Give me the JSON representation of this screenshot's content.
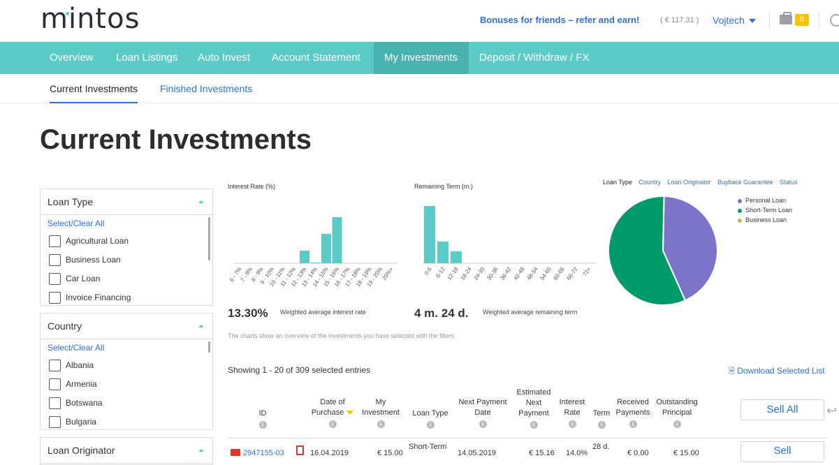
{
  "header": {
    "logo": "mintos",
    "bonus_link": "Bonuses for friends – refer and earn!",
    "balance": "( € 117.31 )",
    "user": "Vojtech",
    "briefcase_count": "0"
  },
  "nav": {
    "items": [
      {
        "label": "Overview"
      },
      {
        "label": "Loan Listings"
      },
      {
        "label": "Auto Invest"
      },
      {
        "label": "Account Statement"
      },
      {
        "label": "My Investments",
        "active": true
      },
      {
        "label": "Deposit / Withdraw / FX"
      }
    ]
  },
  "subnav": {
    "current": "Current Investments",
    "finished": "Finished Investments"
  },
  "page_title": "Current Investments",
  "filters": {
    "loan_type": {
      "title": "Loan Type",
      "select_clear": "Select/Clear All",
      "options": [
        "Agricultural Loan",
        "Business Loan",
        "Car Loan",
        "Invoice Financing"
      ]
    },
    "country": {
      "title": "Country",
      "select_clear": "Select/Clear All",
      "options": [
        "Albania",
        "Armenia",
        "Botswana",
        "Bulgaria"
      ]
    },
    "loan_originator": {
      "title": "Loan Originator"
    }
  },
  "charts": {
    "interest": {
      "title": "Interest Rate (%)",
      "stat_value": "13.30%",
      "stat_label": "Weighted average interest rate"
    },
    "term": {
      "title": "Remaining Term (m.)",
      "stat_value": "4 m. 24 d.",
      "stat_label": "Weighted average remaining term"
    },
    "note": "The charts show an overview of the investments you have selected with the filters",
    "pie_tabs": [
      "Loan Type",
      "Country",
      "Loan Originator",
      "Buyback Guarantee",
      "Status"
    ],
    "legend": [
      {
        "label": "Personal Loan",
        "color": "#7b74c9"
      },
      {
        "label": "Short-Term Loan",
        "color": "#00996a"
      },
      {
        "label": "Business Loan",
        "color": "#a9c35b"
      }
    ]
  },
  "chart_data": [
    {
      "type": "bar",
      "title": "Interest Rate (%)",
      "categories": [
        "6 - 7%",
        "7 - 8%",
        "8 - 9%",
        "9 - 10%",
        "10 - 11%",
        "11 - 12%",
        "12 - 13%",
        "13 - 14%",
        "14 - 15%",
        "15 - 16%",
        "16 - 17%",
        "17 - 18%",
        "18 - 19%",
        "19 - 20%",
        "20%+"
      ],
      "values": [
        0,
        0,
        0,
        0,
        0,
        0,
        18,
        1,
        42,
        66,
        0,
        0,
        0,
        0,
        0
      ],
      "color": "#5bcbc8"
    },
    {
      "type": "bar",
      "title": "Remaining Term (m.)",
      "categories": [
        "0-6",
        "6-12",
        "12-18",
        "18-24",
        "24-30",
        "30-36",
        "36-42",
        "42-48",
        "48-54",
        "54-60",
        "60-66",
        "66-72",
        "72+"
      ],
      "values": [
        82,
        31,
        17,
        0,
        0,
        0,
        0,
        0,
        0,
        0,
        0,
        0,
        0
      ],
      "color": "#5bcbc8"
    },
    {
      "type": "pie",
      "categories": [
        "Personal Loan",
        "Short-Term Loan",
        "Business Loan"
      ],
      "values": [
        43,
        57,
        0
      ],
      "colors": [
        "#7b74c9",
        "#00996a",
        "#a9c35b"
      ]
    }
  ],
  "table": {
    "showing": "Showing 1 - 20 of 309 selected entries",
    "download": "Download Selected List",
    "headers": {
      "id": "ID",
      "date_purchase": "Date of\nPurchase",
      "my_investment": "My\nInvestment",
      "loan_type": "Loan Type",
      "next_payment_date": "Next Payment\nDate",
      "est_next_payment": "Estimated\nNext\nPayment",
      "interest_rate": "Interest\nRate",
      "term": "Term",
      "received_payments": "Received\nPayments",
      "outstanding_principal": "Outstanding\nPrincipal"
    },
    "sell_all": "Sell All",
    "row": {
      "id": "2947155-03",
      "date": "16.04.2019",
      "investment": "€ 15.00",
      "loan_type": "Short-Term",
      "next_date": "14.05.2019",
      "est": "€ 15.16",
      "rate": "14.0%",
      "term": "28 d.",
      "received": "€ 0.00",
      "outstanding": "€ 15.00",
      "sell": "Sell"
    }
  }
}
